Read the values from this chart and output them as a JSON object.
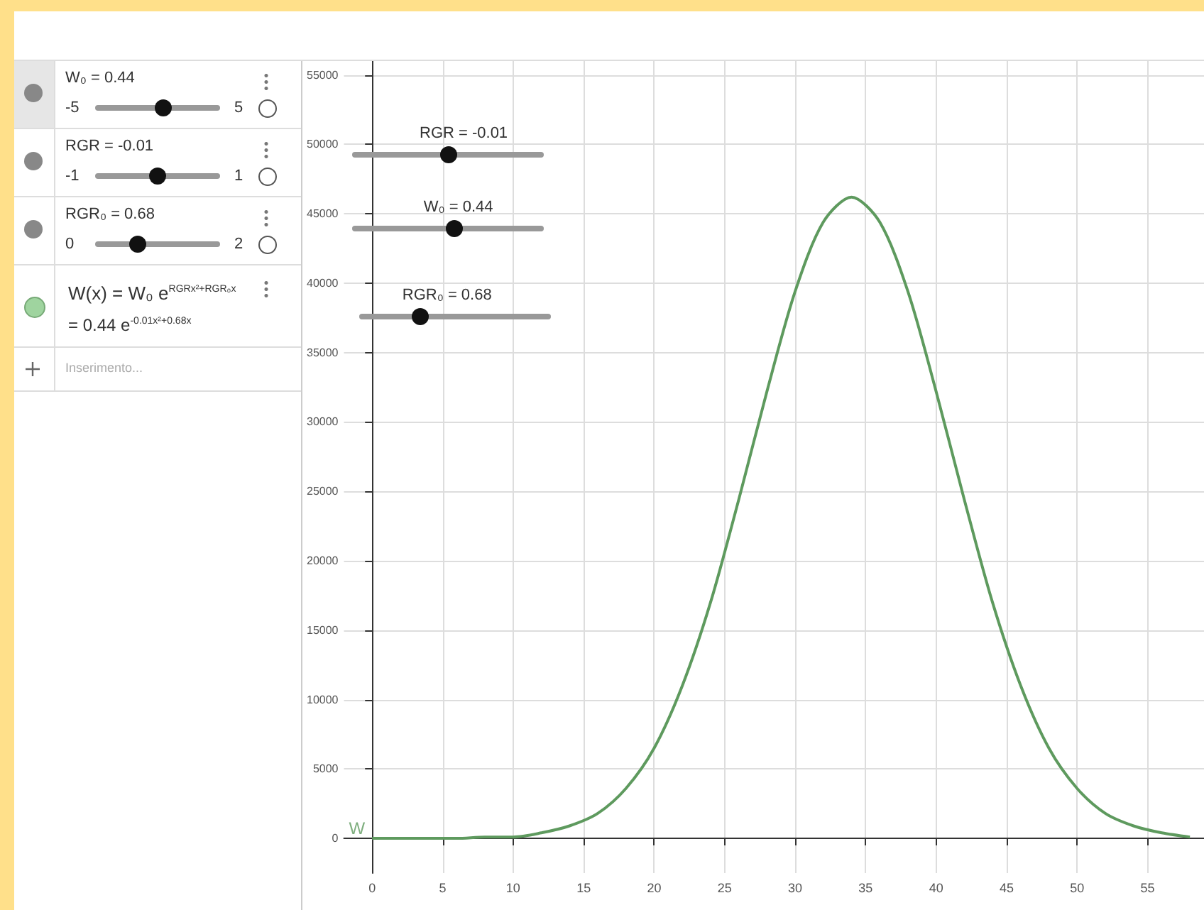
{
  "chart_data": {
    "type": "line",
    "marker": "none",
    "grid": true,
    "x": [
      0,
      2,
      4,
      6,
      8,
      10,
      12,
      14,
      16,
      18,
      20,
      22,
      24,
      26,
      28,
      30,
      32,
      34,
      36,
      38,
      40,
      42,
      44,
      46,
      48,
      50,
      52,
      54,
      56,
      58
    ],
    "series": [
      {
        "color": "#5e9a5e",
        "values": [
          0,
          0,
          0,
          0,
          100,
          100,
          400,
          900,
          1800,
          3600,
          6500,
          11000,
          17000,
          24400,
          32200,
          39400,
          44400,
          46200,
          44400,
          39400,
          32200,
          24400,
          17000,
          11000,
          6500,
          3600,
          1800,
          900,
          400,
          100
        ]
      }
    ],
    "xlim": [
      -2,
      59
    ],
    "xticks": [
      0,
      5,
      10,
      15,
      20,
      25,
      30,
      35,
      40,
      45,
      50,
      55
    ],
    "ylim": [
      -2500,
      56000
    ],
    "yticks": [
      0,
      5000,
      10000,
      15000,
      20000,
      25000,
      30000,
      35000,
      40000,
      45000,
      50000,
      55000
    ],
    "annotations": [
      "W₀ = 0.44",
      "-5",
      "5",
      "RGR = -0.01",
      "-1",
      "1",
      "RGR₀ = 0.68",
      "0",
      "2",
      "W(x) = W₀ e$^{RGRx²+RGR₀x}$",
      "= 0.44 e$^{-0.01x²+0.68x}$",
      "Inserimento...",
      {
        "text": "RGR = -0.01"
      },
      {
        "text": "W₀ = 0.44"
      },
      {
        "text": "RGR₀ = 0.68"
      },
      {
        "text": "W",
        "x": 0,
        "y": 0
      }
    ]
  }
}
